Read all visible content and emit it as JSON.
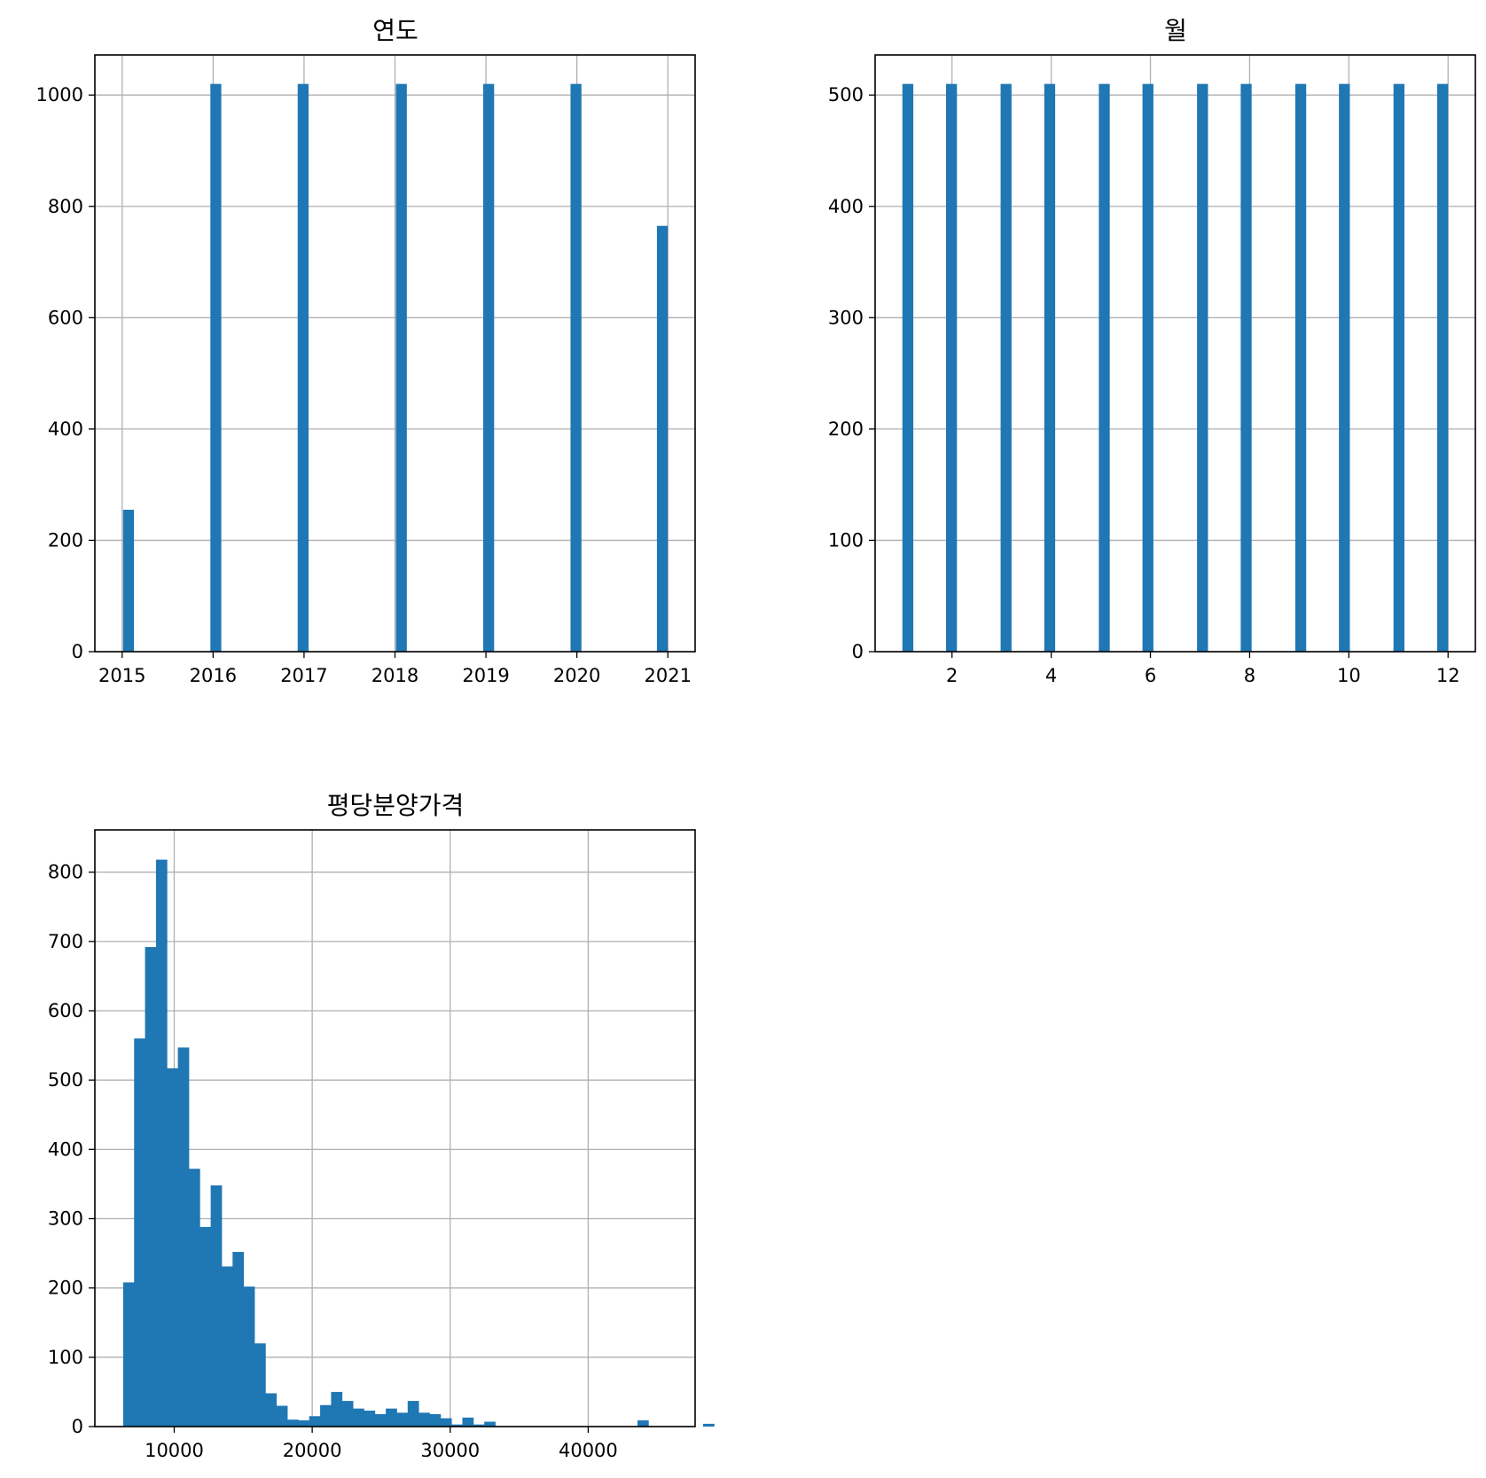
{
  "chart_data": [
    {
      "type": "bar",
      "title": "연도",
      "xlabel": "",
      "ylabel": "",
      "grid": true,
      "xlim": [
        2014.7,
        2021.3
      ],
      "ylim": [
        0,
        1072
      ],
      "bar_width": 0.12,
      "x": [
        2015.07,
        2016.03,
        2016.99,
        2018.07,
        2019.03,
        2019.99,
        2020.94
      ],
      "values": [
        255,
        1020,
        1020,
        1020,
        1020,
        1020,
        765
      ],
      "xticks": [
        2015,
        2016,
        2017,
        2018,
        2019,
        2020,
        2021
      ],
      "xtick_labels": [
        "2015",
        "2016",
        "2017",
        "2018",
        "2019",
        "2020",
        "2021"
      ],
      "yticks": [
        0,
        200,
        400,
        600,
        800,
        1000
      ],
      "ytick_labels": [
        "0",
        "200",
        "400",
        "600",
        "800",
        "1000"
      ]
    },
    {
      "type": "bar",
      "title": "월",
      "xlabel": "",
      "ylabel": "",
      "grid": true,
      "xlim": [
        0.45,
        12.55
      ],
      "ylim": [
        0,
        536
      ],
      "bar_width": 0.22,
      "x": [
        1.11,
        1.99,
        3.09,
        3.97,
        5.07,
        5.95,
        7.05,
        7.93,
        9.03,
        9.91,
        11.01,
        11.89
      ],
      "values": [
        510,
        510,
        510,
        510,
        510,
        510,
        510,
        510,
        510,
        510,
        510,
        510
      ],
      "xticks": [
        2,
        4,
        6,
        8,
        10,
        12
      ],
      "xtick_labels": [
        "2",
        "4",
        "6",
        "8",
        "10",
        "12"
      ],
      "yticks": [
        0,
        100,
        200,
        300,
        400,
        500
      ],
      "ytick_labels": [
        "0",
        "100",
        "200",
        "300",
        "400",
        "500"
      ]
    },
    {
      "type": "bar",
      "title": "평당분양가격",
      "xlabel": "",
      "ylabel": "",
      "grid": true,
      "xlim": [
        4250,
        47750
      ],
      "ylim": [
        0,
        861
      ],
      "bin_start": 6300,
      "bin_width": 793,
      "values": [
        208,
        560,
        692,
        818,
        517,
        547,
        372,
        288,
        348,
        231,
        252,
        202,
        120,
        48,
        30,
        10,
        9,
        15,
        31,
        50,
        37,
        26,
        23,
        18,
        26,
        20,
        37,
        20,
        18,
        12,
        3,
        13,
        3,
        7,
        0,
        0,
        0,
        0,
        0,
        0,
        0,
        0,
        0,
        0,
        0,
        0,
        0,
        9,
        0,
        0,
        0,
        0,
        0,
        4
      ],
      "xticks": [
        10000,
        20000,
        30000,
        40000
      ],
      "xtick_labels": [
        "10000",
        "20000",
        "30000",
        "40000"
      ],
      "yticks": [
        0,
        100,
        200,
        300,
        400,
        500,
        600,
        700,
        800
      ],
      "ytick_labels": [
        "0",
        "100",
        "200",
        "300",
        "400",
        "500",
        "600",
        "700",
        "800"
      ]
    }
  ],
  "colors": {
    "bar": "#1f77b4",
    "grid": "#b0b0b0",
    "axis": "#000000"
  }
}
